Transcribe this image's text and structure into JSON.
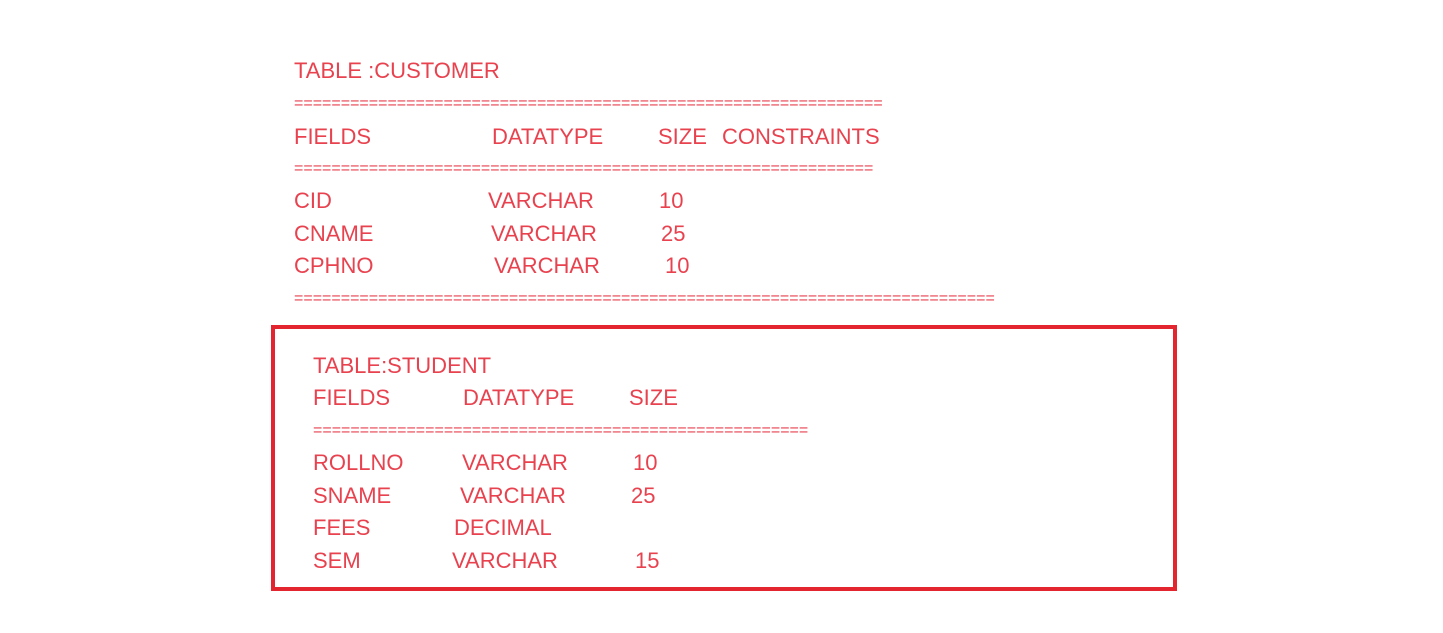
{
  "customer": {
    "title": "TABLE :CUSTOMER",
    "separator_top": "===============================================================",
    "headers": {
      "fields": "FIELDS",
      "datatype": "DATATYPE",
      "size": "SIZE",
      "constraints": "CONSTRAINTS"
    },
    "separator_mid": "==============================================================",
    "rows": [
      {
        "field": "CID",
        "datatype": "VARCHAR",
        "size": "10"
      },
      {
        "field": "CNAME",
        "datatype": "VARCHAR",
        "size": "25"
      },
      {
        "field": "CPHNO",
        "datatype": "VARCHAR",
        "size": "10"
      }
    ],
    "separator_bottom": "==========================================================================="
  },
  "student": {
    "title": "TABLE:STUDENT",
    "headers": {
      "fields": "FIELDS",
      "datatype": "DATATYPE",
      "size": "SIZE"
    },
    "separator": "=====================================================",
    "rows": [
      {
        "field": "ROLLNO",
        "datatype": "VARCHAR",
        "size": "10"
      },
      {
        "field": "SNAME",
        "datatype": "VARCHAR",
        "size": "25"
      },
      {
        "field": "FEES",
        "datatype": "DECIMAL",
        "size": ""
      },
      {
        "field": "SEM",
        "datatype": "VARCHAR",
        "size": "15"
      }
    ]
  },
  "colors": {
    "text": "#e8424f",
    "box_border": "#e3252f"
  }
}
